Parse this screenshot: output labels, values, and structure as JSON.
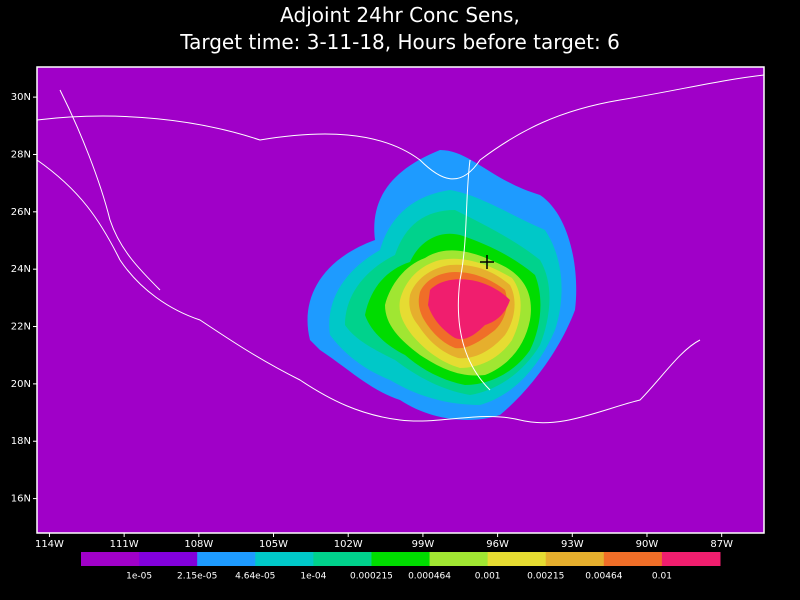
{
  "title": [
    "Adjoint 24hr Conc Sens,",
    "Target time: 3-11-18, Hours before target: 6"
  ],
  "map": {
    "xlim": [
      -114.5,
      -85.3
    ],
    "ylim": [
      14.8,
      31.05
    ],
    "xticks": [
      {
        "value": -114,
        "label": "114W"
      },
      {
        "value": -111,
        "label": "111W"
      },
      {
        "value": -108,
        "label": "108W"
      },
      {
        "value": -105,
        "label": "105W"
      },
      {
        "value": -102,
        "label": "102W"
      },
      {
        "value": -99,
        "label": "99W"
      },
      {
        "value": -96,
        "label": "96W"
      },
      {
        "value": -93,
        "label": "93W"
      },
      {
        "value": -90,
        "label": "90W"
      },
      {
        "value": -87,
        "label": "87W"
      }
    ],
    "yticks": [
      {
        "value": 30,
        "label": "30N"
      },
      {
        "value": 28,
        "label": "28N"
      },
      {
        "value": 26,
        "label": "26N"
      },
      {
        "value": 24,
        "label": "24N"
      },
      {
        "value": 22,
        "label": "22N"
      },
      {
        "value": 20,
        "label": "20N"
      },
      {
        "value": 18,
        "label": "18N"
      },
      {
        "value": 16,
        "label": "16N"
      }
    ]
  },
  "colorbar": {
    "colors": [
      "#a000c8",
      "#8200dc",
      "#1e9bff",
      "#00c8c8",
      "#00d28c",
      "#00dc00",
      "#a0e632",
      "#e6dc32",
      "#e6af2d",
      "#f06e28",
      "#f01e6e"
    ],
    "labels": [
      "1e-05",
      "2.15e-05",
      "4.64e-05",
      "1e-04",
      "0.000215",
      "0.000464",
      "0.001",
      "0.00215",
      "0.00464",
      "0.01"
    ]
  }
}
